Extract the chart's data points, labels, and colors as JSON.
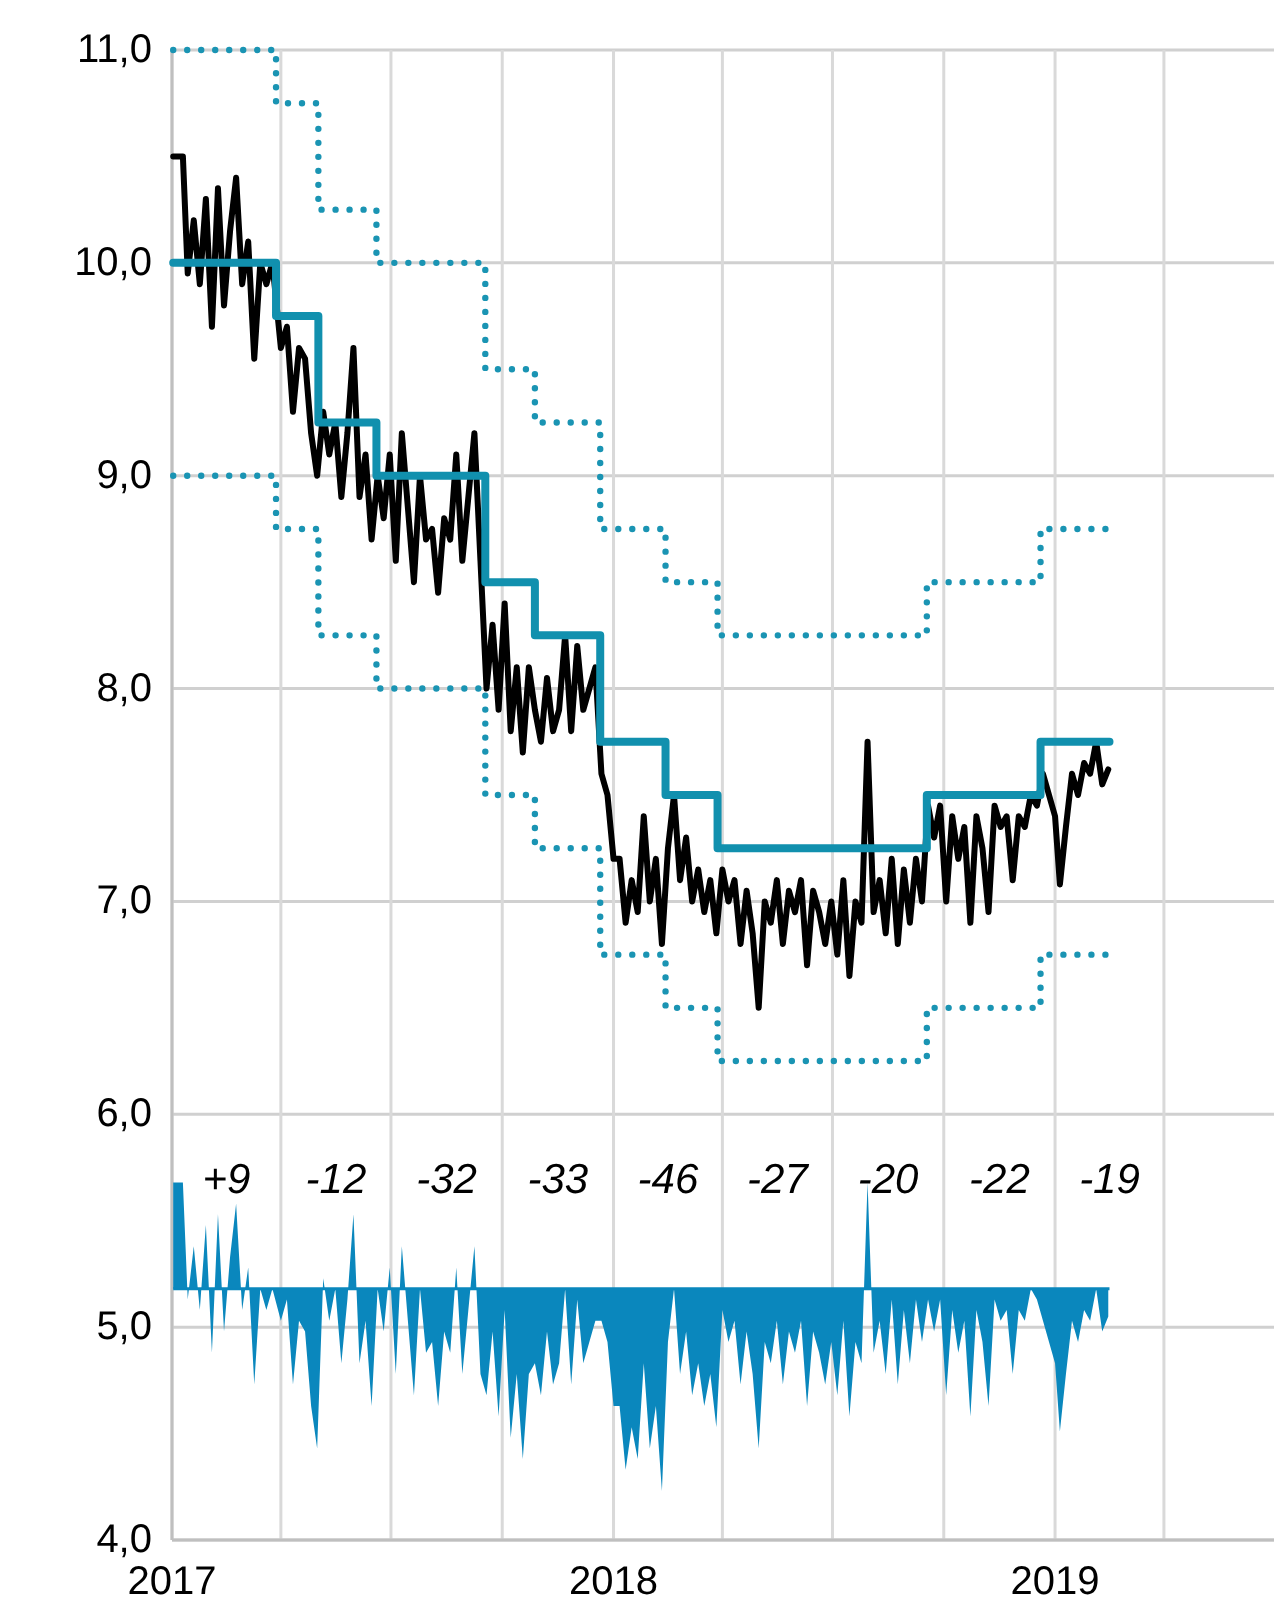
{
  "chart_data": {
    "type": "line",
    "xlim": [
      "2017-01-01",
      "2019-07-01"
    ],
    "ylim": [
      4,
      11
    ],
    "xticks": [
      {
        "value": "2017-01-01",
        "label": "2017"
      },
      {
        "value": "2017-04-01",
        "label": null
      },
      {
        "value": "2017-07-01",
        "label": null
      },
      {
        "value": "2017-10-01",
        "label": null
      },
      {
        "value": "2018-01-01",
        "label": "2018"
      },
      {
        "value": "2018-04-01",
        "label": null
      },
      {
        "value": "2018-07-01",
        "label": null
      },
      {
        "value": "2018-10-01",
        "label": null
      },
      {
        "value": "2019-01-01",
        "label": "2019"
      },
      {
        "value": "2019-04-01",
        "label": null
      }
    ],
    "yticks": [
      {
        "value": 4,
        "label": "4,0"
      },
      {
        "value": 5,
        "label": "5,0"
      },
      {
        "value": 6,
        "label": "6,0"
      },
      {
        "value": 7,
        "label": "7,0"
      },
      {
        "value": 8,
        "label": "8,0"
      },
      {
        "value": 9,
        "label": "9,0"
      },
      {
        "value": 10,
        "label": "10,0"
      },
      {
        "value": 11,
        "label": "11,0"
      }
    ],
    "grid": true,
    "ref_lines": [
      {
        "axis": "y",
        "value": 5.18,
        "color": "#0a87bd"
      }
    ],
    "x": [
      "2017-01-02",
      "2017-01-10",
      "2017-01-14",
      "2017-01-19",
      "2017-01-24",
      "2017-01-29",
      "2017-02-03",
      "2017-02-08",
      "2017-02-13",
      "2017-02-18",
      "2017-02-23",
      "2017-02-28",
      "2017-03-05",
      "2017-03-10",
      "2017-03-15",
      "2017-03-20",
      "2017-03-25",
      "2017-04-01",
      "2017-04-06",
      "2017-04-11",
      "2017-04-16",
      "2017-04-21",
      "2017-04-26",
      "2017-05-01",
      "2017-05-06",
      "2017-05-11",
      "2017-05-16",
      "2017-05-21",
      "2017-05-26",
      "2017-05-31",
      "2017-06-05",
      "2017-06-10",
      "2017-06-15",
      "2017-06-20",
      "2017-06-25",
      "2017-06-30",
      "2017-07-05",
      "2017-07-10",
      "2017-07-15",
      "2017-07-20",
      "2017-07-25",
      "2017-07-30",
      "2017-08-04",
      "2017-08-09",
      "2017-08-14",
      "2017-08-19",
      "2017-08-24",
      "2017-08-29",
      "2017-09-03",
      "2017-09-08",
      "2017-09-13",
      "2017-09-18",
      "2017-09-23",
      "2017-09-28",
      "2017-10-03",
      "2017-10-08",
      "2017-10-13",
      "2017-10-18",
      "2017-10-23",
      "2017-10-28",
      "2017-11-02",
      "2017-11-07",
      "2017-11-12",
      "2017-11-17",
      "2017-11-22",
      "2017-11-27",
      "2017-12-02",
      "2017-12-07",
      "2017-12-12",
      "2017-12-17",
      "2017-12-22",
      "2017-12-27",
      "2018-01-01",
      "2018-01-06",
      "2018-01-11",
      "2018-01-16",
      "2018-01-21",
      "2018-01-26",
      "2018-01-31",
      "2018-02-05",
      "2018-02-10",
      "2018-02-15",
      "2018-02-20",
      "2018-02-25",
      "2018-03-02",
      "2018-03-07",
      "2018-03-12",
      "2018-03-17",
      "2018-03-22",
      "2018-03-27",
      "2018-04-01",
      "2018-04-06",
      "2018-04-11",
      "2018-04-16",
      "2018-04-21",
      "2018-04-26",
      "2018-05-01",
      "2018-05-06",
      "2018-05-11",
      "2018-05-16",
      "2018-05-21",
      "2018-05-26",
      "2018-05-31",
      "2018-06-05",
      "2018-06-10",
      "2018-06-15",
      "2018-06-20",
      "2018-06-25",
      "2018-06-30",
      "2018-07-05",
      "2018-07-10",
      "2018-07-15",
      "2018-07-20",
      "2018-07-25",
      "2018-07-30",
      "2018-08-04",
      "2018-08-09",
      "2018-08-14",
      "2018-08-19",
      "2018-08-24",
      "2018-08-29",
      "2018-09-03",
      "2018-09-08",
      "2018-09-13",
      "2018-09-18",
      "2018-09-23",
      "2018-09-28",
      "2018-10-03",
      "2018-10-08",
      "2018-10-13",
      "2018-10-18",
      "2018-10-23",
      "2018-10-28",
      "2018-11-02",
      "2018-11-07",
      "2018-11-12",
      "2018-11-17",
      "2018-11-22",
      "2018-11-27",
      "2018-12-02",
      "2018-12-07",
      "2018-12-12",
      "2018-12-17",
      "2018-12-22",
      "2018-12-27",
      "2019-01-01",
      "2019-01-05",
      "2019-01-10",
      "2019-01-15",
      "2019-01-20",
      "2019-01-25",
      "2019-01-30",
      "2019-02-04",
      "2019-02-09",
      "2019-02-14"
    ],
    "series": [
      {
        "type": "area",
        "color": "#0a87bd",
        "values": [
          5.68,
          5.68,
          5.13,
          5.38,
          5.08,
          5.48,
          4.88,
          5.53,
          4.98,
          5.33,
          5.58,
          5.08,
          5.28,
          4.73,
          5.18,
          5.08,
          5.18,
          5.03,
          5.13,
          4.73,
          5.03,
          4.98,
          4.63,
          4.43,
          5.23,
          5.03,
          5.18,
          4.83,
          5.13,
          5.53,
          4.83,
          5.03,
          4.63,
          5.18,
          4.98,
          5.28,
          4.78,
          5.38,
          5.03,
          4.68,
          5.18,
          4.88,
          4.93,
          4.63,
          4.98,
          4.88,
          5.28,
          4.78,
          5.08,
          5.38,
          4.78,
          4.68,
          4.98,
          4.58,
          5.08,
          4.48,
          4.78,
          4.38,
          4.78,
          4.83,
          4.68,
          4.98,
          4.73,
          4.83,
          5.18,
          4.73,
          5.13,
          4.83,
          4.93,
          5.03,
          5.03,
          4.93,
          4.63,
          4.63,
          4.33,
          4.53,
          4.38,
          4.83,
          4.43,
          4.63,
          4.23,
          4.93,
          5.18,
          4.78,
          4.98,
          4.68,
          4.83,
          4.63,
          4.78,
          4.53,
          5.08,
          4.93,
          5.03,
          4.73,
          4.98,
          4.78,
          4.43,
          4.93,
          4.83,
          5.03,
          4.73,
          4.98,
          4.88,
          5.03,
          4.63,
          4.98,
          4.88,
          4.73,
          4.93,
          4.68,
          5.03,
          4.58,
          4.93,
          4.83,
          5.68,
          4.88,
          5.03,
          4.78,
          5.13,
          4.73,
          5.08,
          4.83,
          5.13,
          4.93,
          5.13,
          4.98,
          5.13,
          4.68,
          5.08,
          4.88,
          5.03,
          4.58,
          5.08,
          4.93,
          4.63,
          5.13,
          5.03,
          5.08,
          4.78,
          5.08,
          5.03,
          5.18,
          5.13,
          5.03,
          4.93,
          4.83,
          4.51,
          4.78,
          5.03,
          4.93,
          5.08,
          5.03,
          5.18,
          4.98,
          5.05
        ]
      },
      {
        "color": "#000000",
        "values": [
          10.5,
          10.5,
          9.95,
          10.2,
          9.9,
          10.3,
          9.7,
          10.35,
          9.8,
          10.15,
          10.4,
          9.9,
          10.1,
          9.55,
          10.0,
          9.9,
          10.0,
          9.6,
          9.7,
          9.3,
          9.6,
          9.55,
          9.2,
          9.0,
          9.3,
          9.1,
          9.25,
          8.9,
          9.2,
          9.6,
          8.9,
          9.1,
          8.7,
          9.0,
          8.8,
          9.1,
          8.6,
          9.2,
          8.85,
          8.5,
          9.0,
          8.7,
          8.75,
          8.45,
          8.8,
          8.7,
          9.1,
          8.6,
          8.9,
          9.2,
          8.6,
          8.0,
          8.3,
          7.9,
          8.4,
          7.8,
          8.1,
          7.7,
          8.1,
          7.9,
          7.75,
          8.05,
          7.8,
          7.9,
          8.25,
          7.8,
          8.2,
          7.9,
          8.0,
          8.1,
          7.6,
          7.5,
          7.2,
          7.2,
          6.9,
          7.1,
          6.95,
          7.4,
          7.0,
          7.2,
          6.8,
          7.25,
          7.5,
          7.1,
          7.3,
          7.0,
          7.15,
          6.95,
          7.1,
          6.85,
          7.15,
          7.0,
          7.1,
          6.8,
          7.05,
          6.85,
          6.5,
          7.0,
          6.9,
          7.1,
          6.8,
          7.05,
          6.95,
          7.1,
          6.7,
          7.05,
          6.95,
          6.8,
          7.0,
          6.75,
          7.1,
          6.65,
          7.0,
          6.9,
          7.75,
          6.95,
          7.1,
          6.85,
          7.2,
          6.8,
          7.15,
          6.9,
          7.2,
          7.0,
          7.45,
          7.3,
          7.45,
          7.0,
          7.4,
          7.2,
          7.35,
          6.9,
          7.4,
          7.25,
          6.95,
          7.45,
          7.35,
          7.4,
          7.1,
          7.4,
          7.35,
          7.5,
          7.45,
          7.6,
          7.5,
          7.4,
          7.08,
          7.35,
          7.6,
          7.5,
          7.65,
          7.6,
          7.75,
          7.55,
          7.62
        ]
      },
      {
        "type": "step",
        "color": "#1a94b3",
        "line_style": "dotted",
        "x": [
          "2017-01-02",
          "2017-03-28",
          "2017-05-02",
          "2017-06-19",
          "2017-09-17",
          "2017-10-28",
          "2017-12-21",
          "2018-02-13",
          "2018-03-28",
          "2018-09-17",
          "2018-12-20",
          "2019-02-15"
        ],
        "values": [
          11,
          10.75,
          10.25,
          10,
          9.5,
          9.25,
          8.75,
          8.5,
          8.25,
          8.5,
          8.75,
          8.75
        ]
      },
      {
        "type": "step",
        "color": "#1a94b3",
        "line_style": "dotted",
        "x": [
          "2017-01-02",
          "2017-03-28",
          "2017-05-02",
          "2017-06-19",
          "2017-09-17",
          "2017-10-28",
          "2017-12-21",
          "2018-02-13",
          "2018-03-28",
          "2018-09-17",
          "2018-12-20",
          "2019-02-15"
        ],
        "values": [
          9,
          8.75,
          8.25,
          8,
          7.5,
          7.25,
          6.75,
          6.5,
          6.25,
          6.5,
          6.75,
          6.75
        ]
      },
      {
        "type": "step",
        "color": "#1190ae",
        "line_style": "solid",
        "x": [
          "2017-01-02",
          "2017-03-28",
          "2017-05-02",
          "2017-06-19",
          "2017-09-17",
          "2017-10-28",
          "2017-12-21",
          "2018-02-13",
          "2018-03-28",
          "2018-09-17",
          "2018-12-20",
          "2019-02-15"
        ],
        "values": [
          10,
          9.75,
          9.25,
          9,
          8.5,
          8.25,
          7.75,
          7.5,
          7.25,
          7.5,
          7.75,
          7.75
        ]
      }
    ],
    "annotations": [
      "+9",
      "-12",
      "-32",
      "-33",
      "-46",
      "-27",
      "-20",
      "-22",
      "-19"
    ]
  }
}
